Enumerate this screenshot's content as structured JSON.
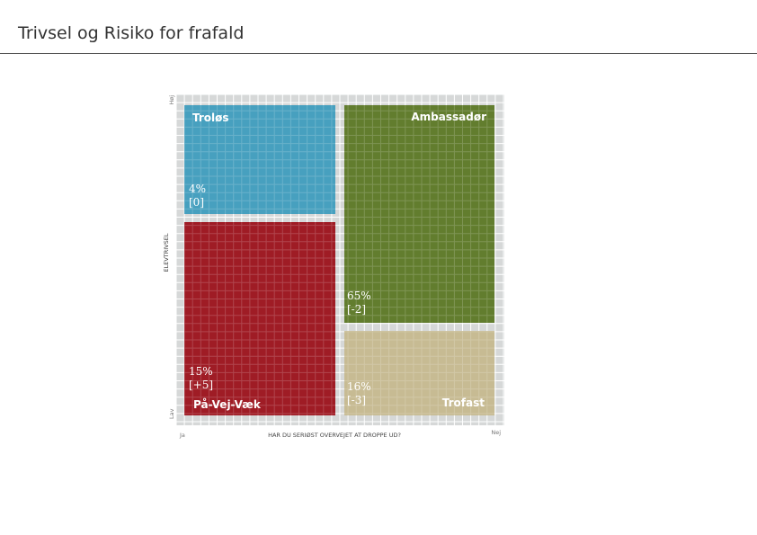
{
  "header": {
    "title": "Trivsel og Risiko for frafald"
  },
  "colors": {
    "background_grid": "#d6d8d8",
    "troelos": "#47a0bf",
    "ambassador": "#627d2e",
    "paa_vej_vaek": "#9f1c25",
    "trofast": "#c7bb93"
  },
  "chart_data": {
    "type": "mosaic",
    "title": "Trivsel og Risiko for frafald",
    "xlabel": "HAR DU SERIØST OVERVEJET AT DROPPE UD?",
    "ylabel": "ELEVTRIVSEL",
    "x_low_label": "Ja",
    "x_high_label": "Nej",
    "y_high_label": "Høj",
    "y_low_label": "Lav",
    "grid": true,
    "quadrants": [
      {
        "name": "Troløs",
        "percent_label": "4%",
        "change_label": "[0]",
        "value": 4,
        "change": 0,
        "x": "Ja",
        "y": "Høj"
      },
      {
        "name": "Ambassadør",
        "percent_label": "65%",
        "change_label": "[-2]",
        "value": 65,
        "change": -2,
        "x": "Nej",
        "y": "Høj"
      },
      {
        "name": "På-Vej-Væk",
        "percent_label": "15%",
        "change_label": "[+5]",
        "value": 15,
        "change": 5,
        "x": "Ja",
        "y": "Lav"
      },
      {
        "name": "Trofast",
        "percent_label": "16%",
        "change_label": "[-3]",
        "value": 16,
        "change": -3,
        "x": "Nej",
        "y": "Lav"
      }
    ]
  }
}
